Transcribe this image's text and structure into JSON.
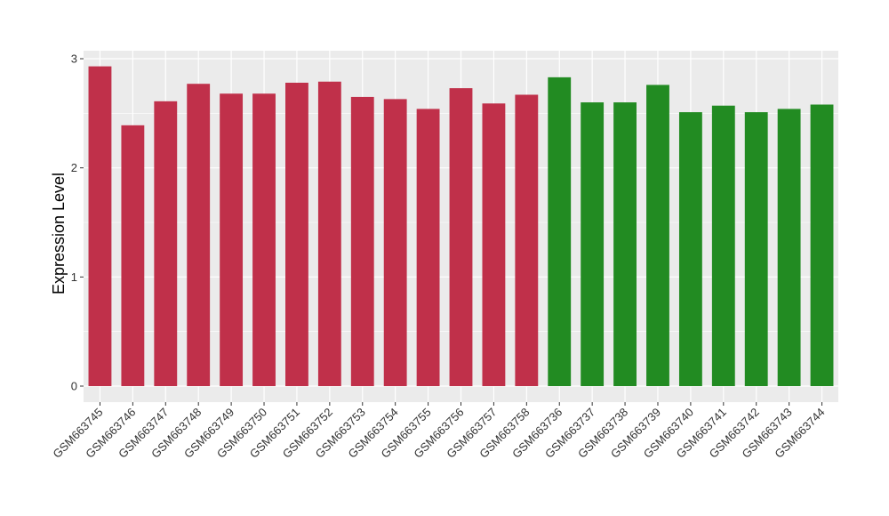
{
  "chart_data": {
    "type": "bar",
    "title": "",
    "xlabel": "",
    "ylabel": "Expression Level",
    "ylim": [
      0,
      3
    ],
    "yticks": [
      0,
      1,
      2,
      3
    ],
    "grid": true,
    "legend": "none",
    "categories": [
      "GSM663745",
      "GSM663746",
      "GSM663747",
      "GSM663748",
      "GSM663749",
      "GSM663750",
      "GSM663751",
      "GSM663752",
      "GSM663753",
      "GSM663754",
      "GSM663755",
      "GSM663756",
      "GSM663757",
      "GSM663758",
      "GSM663736",
      "GSM663737",
      "GSM663738",
      "GSM663739",
      "GSM663740",
      "GSM663741",
      "GSM663742",
      "GSM663743",
      "GSM663744"
    ],
    "values": [
      2.93,
      2.39,
      2.61,
      2.77,
      2.68,
      2.68,
      2.78,
      2.79,
      2.65,
      2.63,
      2.54,
      2.73,
      2.59,
      2.67,
      2.83,
      2.6,
      2.6,
      2.76,
      2.51,
      2.57,
      2.51,
      2.54,
      2.58
    ],
    "bar_colors": [
      "#c0304a",
      "#c0304a",
      "#c0304a",
      "#c0304a",
      "#c0304a",
      "#c0304a",
      "#c0304a",
      "#c0304a",
      "#c0304a",
      "#c0304a",
      "#c0304a",
      "#c0304a",
      "#c0304a",
      "#c0304a",
      "#228b22",
      "#228b22",
      "#228b22",
      "#228b22",
      "#228b22",
      "#228b22",
      "#228b22",
      "#228b22",
      "#228b22"
    ],
    "colors": {
      "panel": "#ebebeb",
      "grid": "#ffffff",
      "tick": "#333333"
    }
  }
}
